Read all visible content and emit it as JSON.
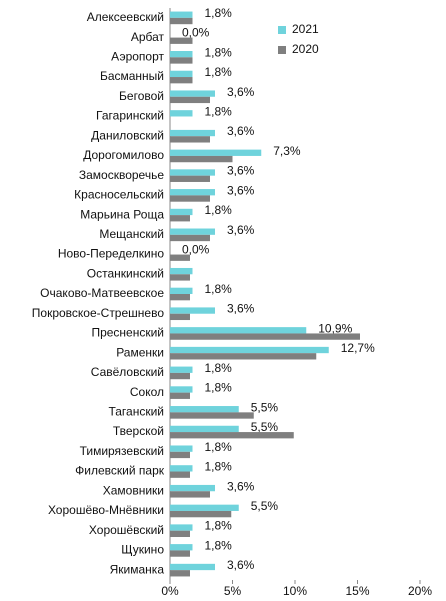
{
  "chart_data": {
    "type": "hbar",
    "categories": [
      "Алексеевский",
      "Арбат",
      "Аэропорт",
      "Басманный",
      "Беговой",
      "Гагаринский",
      "Даниловский",
      "Дорогомилово",
      "Замоскворечье",
      "Красносельский",
      "Марьина Роща",
      "Мещанский",
      "Ново-Переделкино",
      "Останкинский",
      "Очаково-Матвеевское",
      "Покровское-Стрешнево",
      "Пресненский",
      "Раменки",
      "Савёловский",
      "Сокол",
      "Таганский",
      "Тверской",
      "Тимирязевский",
      "Филевский парк",
      "Хамовники",
      "Хорошёво-Мнёвники",
      "Хорошёвский",
      "Щукино",
      "Якиманка"
    ],
    "series": [
      {
        "name": "2021",
        "color": "#6fd3dc",
        "values": [
          1.8,
          0.0,
          1.8,
          1.8,
          3.6,
          1.8,
          3.6,
          7.3,
          3.6,
          3.6,
          1.8,
          3.6,
          0.0,
          1.8,
          1.8,
          3.6,
          10.9,
          12.7,
          1.8,
          1.8,
          5.5,
          5.5,
          1.8,
          1.8,
          3.6,
          5.5,
          1.8,
          1.8,
          3.6
        ],
        "value_labels": [
          "1,8%",
          "0,0%",
          "1,8%",
          "1,8%",
          "3,6%",
          "1,8%",
          "3,6%",
          "7,3%",
          "3,6%",
          "3,6%",
          "1,8%",
          "3,6%",
          "0,0%",
          null,
          "1,8%",
          "3,6%",
          "10,9%",
          "12,7%",
          "1,8%",
          "1,8%",
          "5,5%",
          "5,5%",
          "1,8%",
          "1,8%",
          "3,6%",
          "5,5%",
          "1,8%",
          "1,8%",
          "3,6%"
        ]
      },
      {
        "name": "2020",
        "color": "#7f7f7f",
        "values": [
          1.8,
          1.8,
          1.8,
          1.8,
          3.2,
          0,
          3.2,
          5.0,
          3.2,
          3.2,
          1.6,
          3.2,
          1.6,
          1.6,
          1.6,
          1.6,
          15.2,
          11.7,
          1.6,
          1.6,
          6.7,
          9.9,
          1.6,
          1.6,
          3.2,
          4.9,
          1.6,
          1.6,
          1.6
        ]
      }
    ],
    "xlim": [
      0,
      20
    ],
    "xticks": [
      {
        "value": 0,
        "label": "0%"
      },
      {
        "value": 5,
        "label": "5%"
      },
      {
        "value": 10,
        "label": "10%"
      },
      {
        "value": 15,
        "label": "15%"
      },
      {
        "value": 20,
        "label": "20%"
      }
    ],
    "legend": "upper-right"
  }
}
